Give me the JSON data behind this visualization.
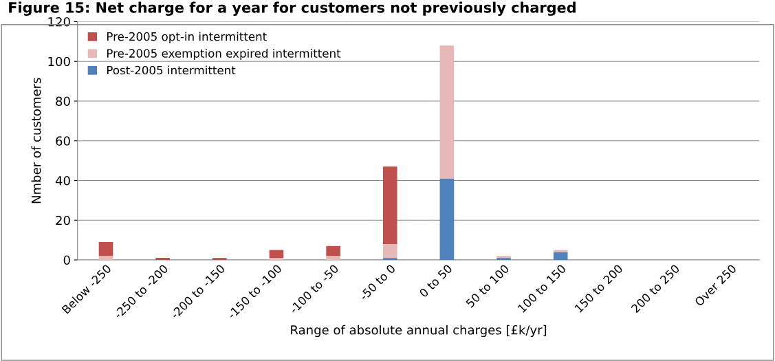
{
  "chart_data": {
    "type": "bar",
    "title": "Figure 15: Net charge for a year for customers not previously charged",
    "xlabel": "Range of absolute annual charges [£k/yr]",
    "ylabel": "Nmber of customers",
    "categories": [
      "Below -250",
      "-250 to -200",
      "-200 to -150",
      "-150 to -100",
      "-100 to -50",
      "-50 to 0",
      "0 to 50",
      "50 to 100",
      "100 to 150",
      "150 to 200",
      "200 to 250",
      "Over 250"
    ],
    "stacked": true,
    "series": [
      {
        "name": "Post-2005 intermittent",
        "color": "#4f81bd",
        "values": [
          0,
          0,
          0,
          0,
          0,
          1,
          41,
          1,
          4,
          0,
          0,
          0
        ]
      },
      {
        "name": "Pre-2005 exemption expired intermittent",
        "color": "#e6b9b8",
        "values": [
          2,
          0,
          0,
          1,
          2,
          7,
          67,
          1,
          1,
          0,
          0,
          0
        ]
      },
      {
        "name": "Pre-2005 opt-in intermittent",
        "color": "#c0504d",
        "values": [
          7,
          1,
          1,
          4,
          5,
          39,
          0,
          0,
          0,
          0,
          0,
          0
        ]
      }
    ],
    "ylim": [
      0,
      120
    ],
    "yticks": [
      0,
      20,
      40,
      60,
      80,
      100,
      120
    ],
    "grid": "y",
    "legend": "top left"
  }
}
